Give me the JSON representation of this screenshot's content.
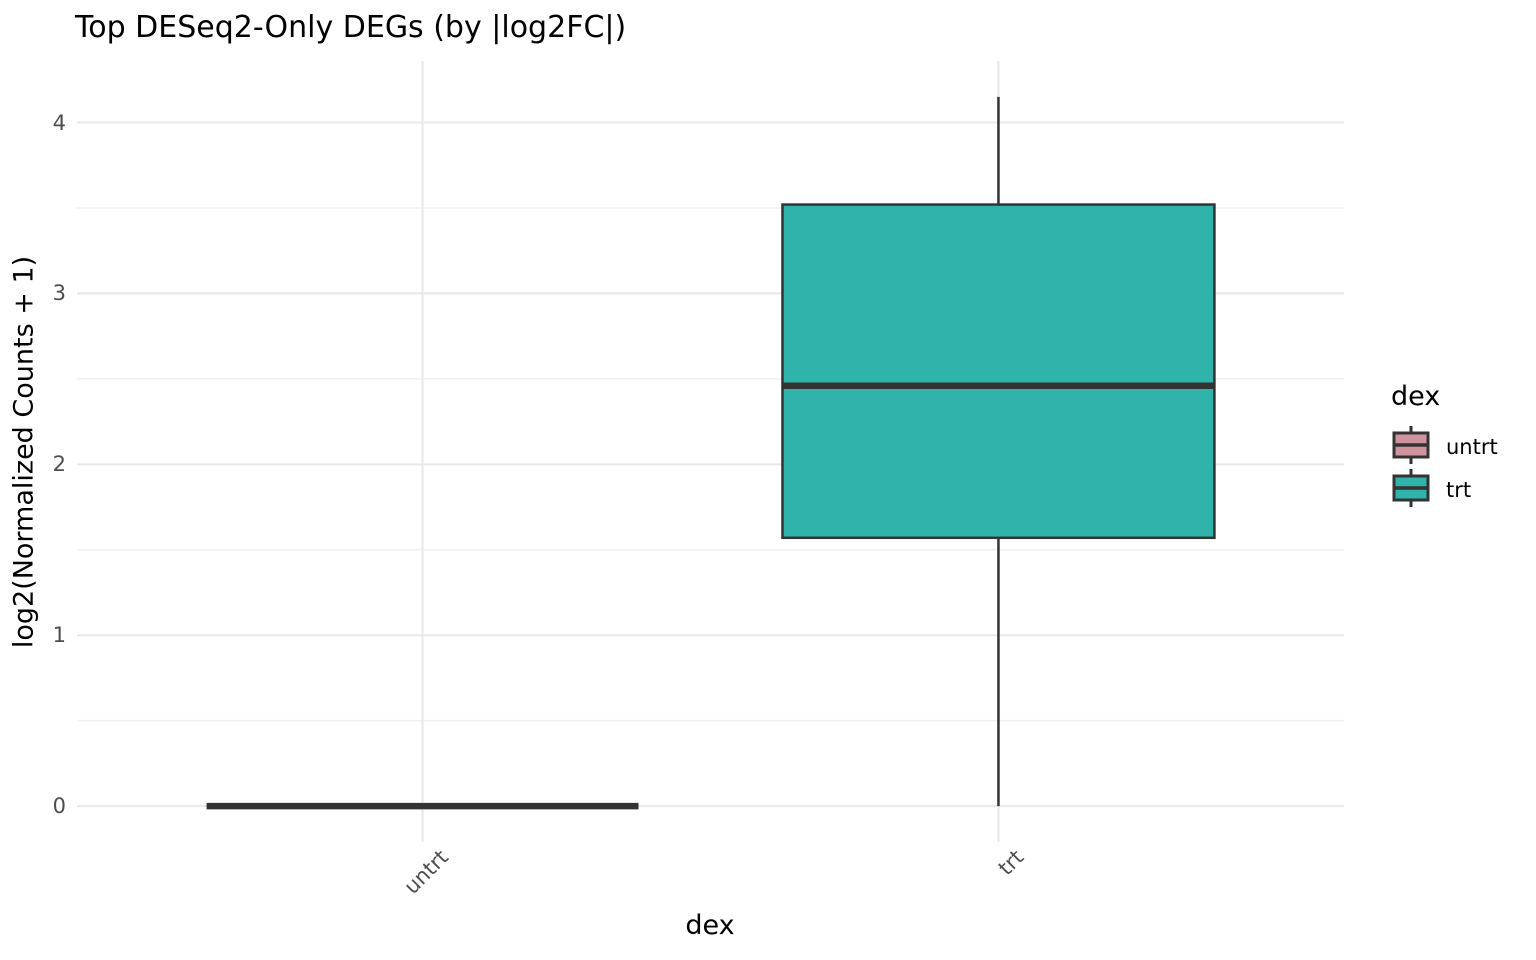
{
  "title": "Top DESeq2-Only DEGs (by |log2FC|)",
  "x_axis": {
    "label": "dex",
    "categories": [
      "untrt",
      "trt"
    ]
  },
  "y_axis": {
    "label": "log2(Normalized Counts + 1)",
    "ticks": [
      0,
      1,
      2,
      3,
      4
    ],
    "minor_ticks": [
      0.5,
      1.5,
      2.5,
      3.5
    ]
  },
  "legend": {
    "title": "dex",
    "items": [
      {
        "label": "untrt",
        "color": "#D093A0"
      },
      {
        "label": "trt",
        "color": "#2FB3AA"
      }
    ]
  },
  "chart_data": {
    "type": "boxplot",
    "title": "Top DESeq2-Only DEGs (by |log2FC|)",
    "xlabel": "dex",
    "ylabel": "log2(Normalized Counts + 1)",
    "categories": [
      "untrt",
      "trt"
    ],
    "series": [
      {
        "name": "untrt",
        "fill": "#D093A0",
        "stats": {
          "lower_whisker": 0,
          "q1": 0,
          "median": 0,
          "q3": 0,
          "upper_whisker": 0
        }
      },
      {
        "name": "trt",
        "fill": "#2FB3AA",
        "stats": {
          "lower_whisker": 0,
          "q1": 1.57,
          "median": 2.46,
          "q3": 3.52,
          "upper_whisker": 4.15
        }
      }
    ],
    "ylim": [
      -0.21,
      4.36
    ],
    "y_major_breaks": [
      0,
      1,
      2,
      3,
      4
    ],
    "y_minor_breaks": [
      0.5,
      1.5,
      2.5,
      3.5
    ],
    "grid": true,
    "legend_position": "right"
  },
  "colors": {
    "stroke": "#333333",
    "grid_major": "#E8E8E8",
    "grid_minor": "#F0F0F0",
    "tick_text": "#4D4D4D",
    "text": "#000000",
    "background": "#FFFFFF"
  }
}
